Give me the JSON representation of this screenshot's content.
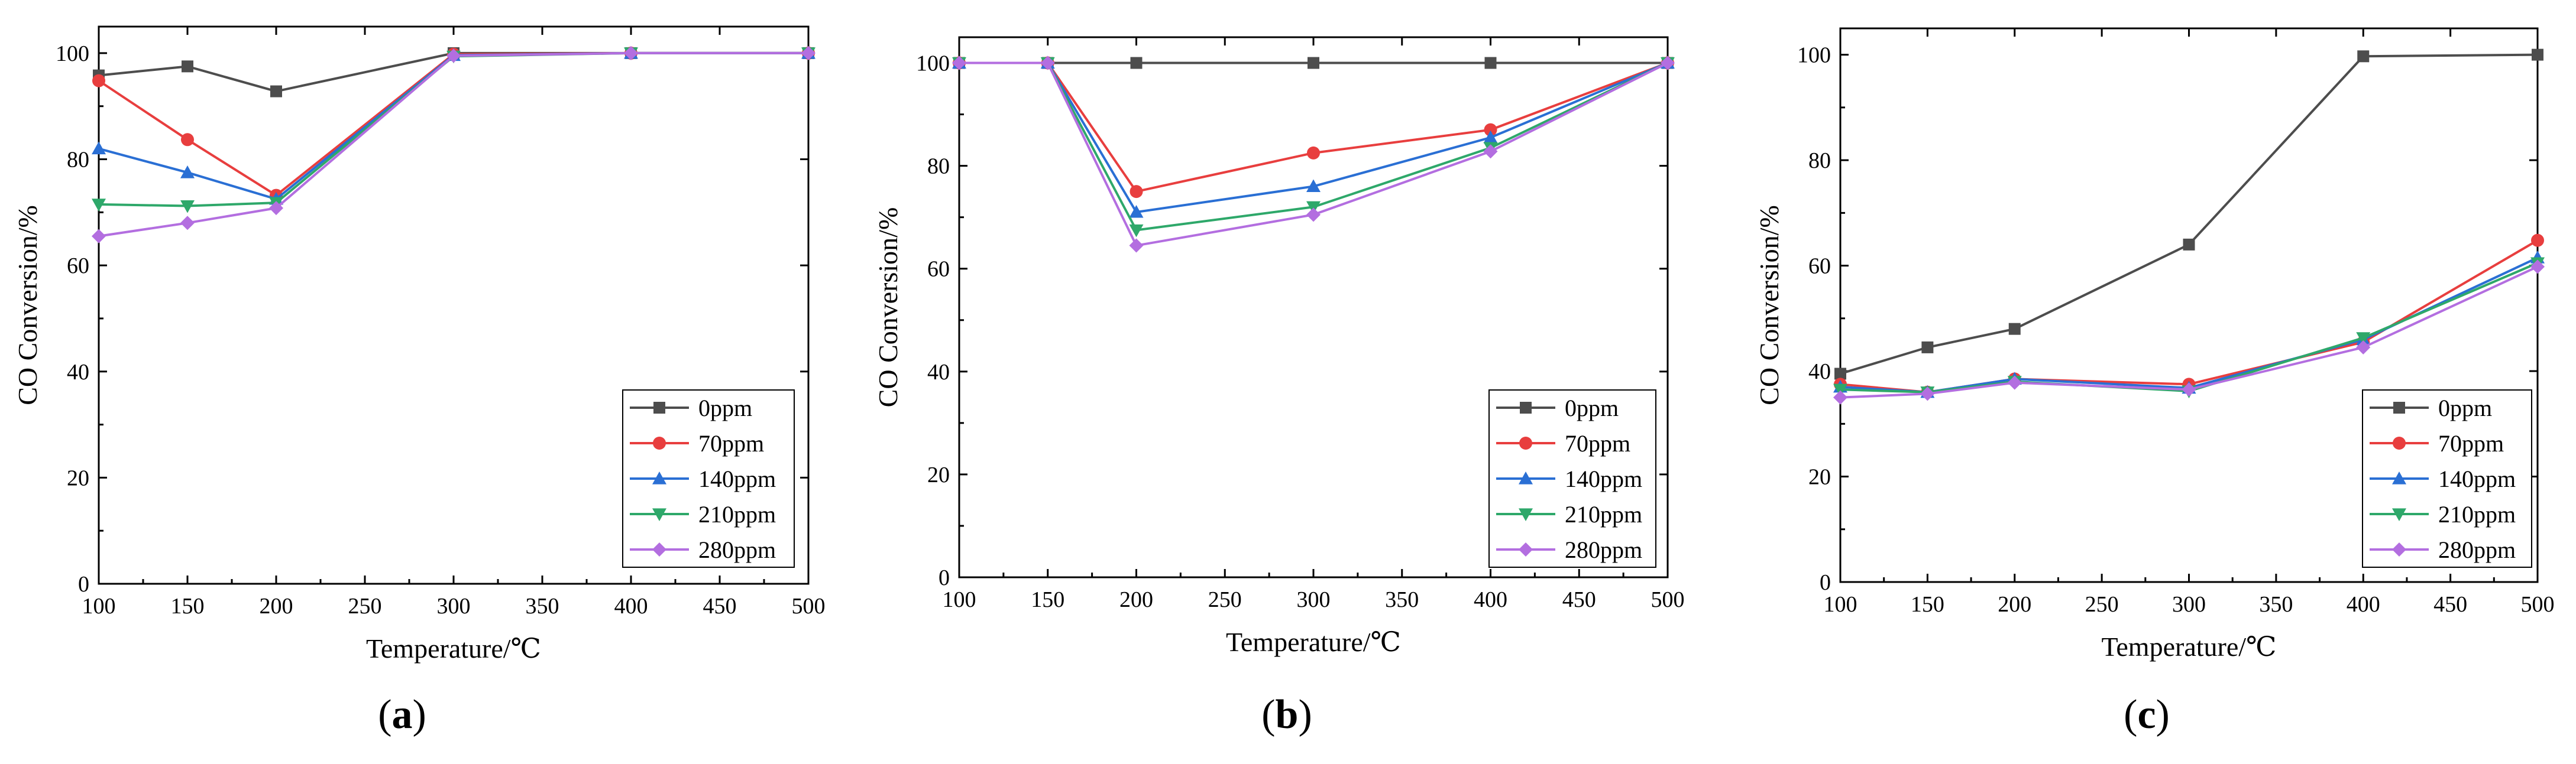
{
  "colors": {
    "0ppm": "#4d4d4d",
    "70ppm": "#e83e3e",
    "140ppm": "#2a6fd4",
    "210ppm": "#2ea86a",
    "280ppm": "#b36ee0"
  },
  "chart_data": [
    {
      "type": "line",
      "panel_label": "a",
      "xlabel": "Temperature/℃",
      "ylabel": "CO Conversion/%",
      "xlim": [
        100,
        500
      ],
      "ylim": [
        0,
        105
      ],
      "xticks": [
        100,
        150,
        200,
        250,
        300,
        350,
        400,
        450,
        500
      ],
      "yticks": [
        0,
        20,
        40,
        60,
        80,
        100
      ],
      "x": [
        100,
        150,
        200,
        300,
        400,
        500
      ],
      "series": [
        {
          "name": "0ppm",
          "marker": "square",
          "values": [
            95.8,
            97.5,
            92.8,
            100,
            100,
            100
          ]
        },
        {
          "name": "70ppm",
          "marker": "circle",
          "values": [
            94.8,
            83.7,
            73.2,
            99.8,
            100,
            100
          ]
        },
        {
          "name": "140ppm",
          "marker": "triangle-up",
          "values": [
            82,
            77.5,
            72.5,
            99.6,
            100,
            100
          ]
        },
        {
          "name": "210ppm",
          "marker": "triangle-down",
          "values": [
            71.5,
            71.2,
            71.8,
            99.4,
            100,
            100
          ]
        },
        {
          "name": "280ppm",
          "marker": "diamond",
          "values": [
            65.5,
            68,
            70.8,
            99.5,
            100,
            100
          ]
        }
      ],
      "legend_position": "bottom-right"
    },
    {
      "type": "line",
      "panel_label": "b",
      "xlabel": "Temperature/℃",
      "ylabel": "CO Conversion/%",
      "xlim": [
        100,
        500
      ],
      "ylim": [
        0,
        105
      ],
      "xticks": [
        100,
        150,
        200,
        250,
        300,
        350,
        400,
        450,
        500
      ],
      "yticks": [
        0,
        20,
        40,
        60,
        80,
        100
      ],
      "x": [
        100,
        150,
        200,
        300,
        400,
        500
      ],
      "series": [
        {
          "name": "0ppm",
          "marker": "square",
          "values": [
            100,
            100,
            100,
            100,
            100,
            100
          ]
        },
        {
          "name": "70ppm",
          "marker": "circle",
          "values": [
            100,
            100,
            75,
            82.5,
            87,
            100
          ]
        },
        {
          "name": "140ppm",
          "marker": "triangle-up",
          "values": [
            100,
            100,
            71,
            76,
            85.5,
            100
          ]
        },
        {
          "name": "210ppm",
          "marker": "triangle-down",
          "values": [
            100,
            100,
            67.5,
            72,
            83.5,
            100
          ]
        },
        {
          "name": "280ppm",
          "marker": "diamond",
          "values": [
            100,
            100,
            64.5,
            70.5,
            82.8,
            100
          ]
        }
      ],
      "legend_position": "bottom-right"
    },
    {
      "type": "line",
      "panel_label": "c",
      "xlabel": "Temperature/℃",
      "ylabel": "CO Conversion/%",
      "xlim": [
        100,
        500
      ],
      "ylim": [
        0,
        105
      ],
      "xticks": [
        100,
        150,
        200,
        250,
        300,
        350,
        400,
        450,
        500
      ],
      "yticks": [
        0,
        20,
        40,
        60,
        80,
        100
      ],
      "x": [
        100,
        150,
        200,
        300,
        400,
        500
      ],
      "series": [
        {
          "name": "0ppm",
          "marker": "square",
          "values": [
            39.5,
            44.5,
            48,
            64,
            99.7,
            100
          ]
        },
        {
          "name": "70ppm",
          "marker": "circle",
          "values": [
            37.5,
            36,
            38.5,
            37.5,
            45.5,
            64.8
          ]
        },
        {
          "name": "140ppm",
          "marker": "triangle-up",
          "values": [
            37,
            36,
            38.5,
            36.8,
            46,
            61.5
          ]
        },
        {
          "name": "210ppm",
          "marker": "triangle-down",
          "values": [
            36.5,
            36,
            38,
            36.2,
            46.3,
            60.5
          ]
        },
        {
          "name": "280ppm",
          "marker": "diamond",
          "values": [
            35,
            35.7,
            37.8,
            36.5,
            44.5,
            59.8
          ]
        }
      ],
      "legend_position": "bottom-right"
    }
  ]
}
